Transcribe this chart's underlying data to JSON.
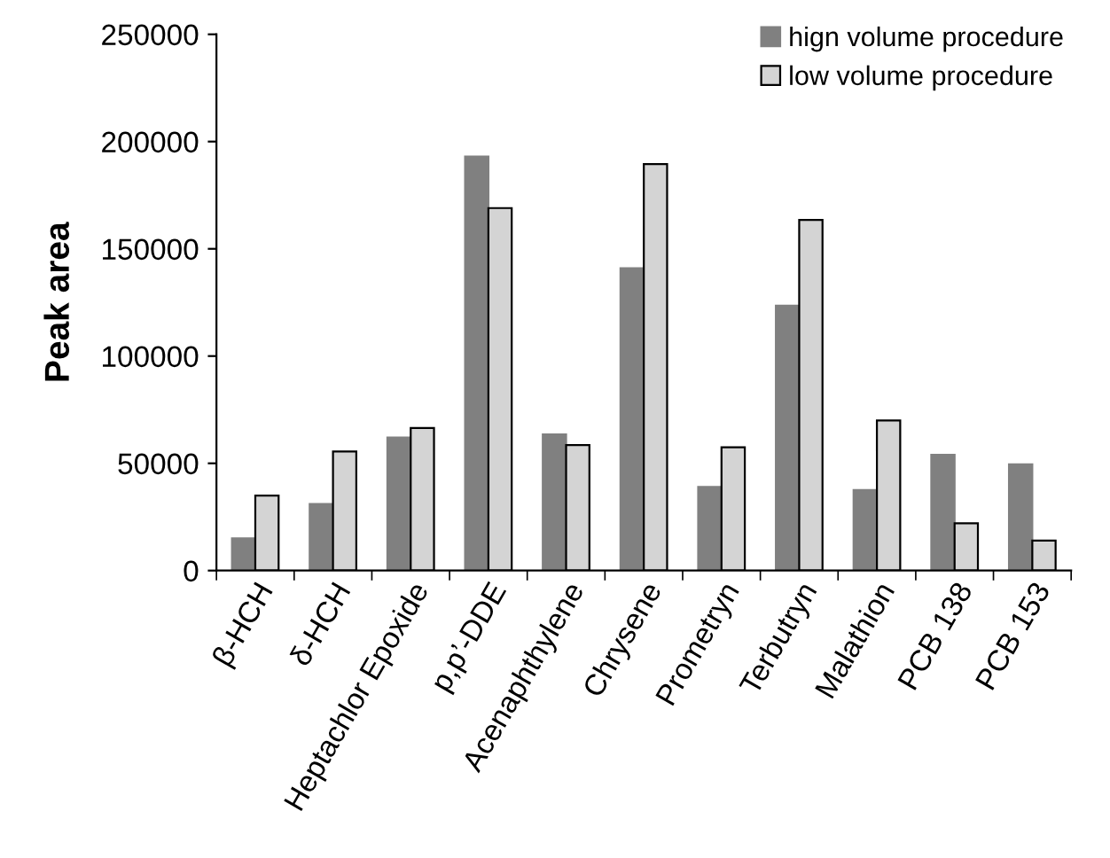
{
  "chart_data": {
    "type": "bar",
    "ylabel": "Peak area",
    "categories": [
      "β-HCH",
      "δ-HCH",
      "Heptachlor Epoxide",
      "p,p’-DDE",
      "Acenaphthylene",
      "Chrysene",
      "Prometryn",
      "Terbutryn",
      "Malathion",
      "PCB 138",
      "PCB 153"
    ],
    "series": [
      {
        "name": "hign volume procedure",
        "color": "#808080",
        "values": [
          15000,
          31000,
          62000,
          193000,
          63500,
          141000,
          39000,
          123500,
          37500,
          54000,
          49500
        ]
      },
      {
        "name": "low volume procedure",
        "color": "#d4d4d4",
        "values": [
          35000,
          55500,
          66500,
          169000,
          58500,
          189500,
          57500,
          163500,
          70000,
          22000,
          14000
        ]
      }
    ],
    "ylim": [
      0,
      250000
    ],
    "yticks": [
      0,
      50000,
      100000,
      150000,
      200000,
      250000
    ],
    "grid": false,
    "legend": "top right"
  }
}
